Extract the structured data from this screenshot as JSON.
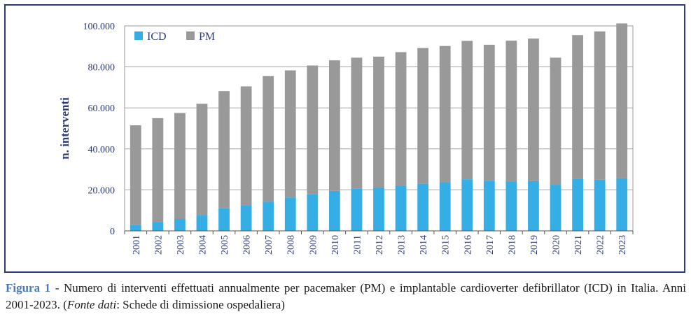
{
  "chart_data": {
    "type": "bar",
    "stacked": true,
    "categories": [
      "2001",
      "2002",
      "2003",
      "2004",
      "2005",
      "2006",
      "2007",
      "2008",
      "2009",
      "2010",
      "2011",
      "2012",
      "2013",
      "2014",
      "2015",
      "2016",
      "2017",
      "2018",
      "2019",
      "2020",
      "2021",
      "2022",
      "2023"
    ],
    "series": [
      {
        "name": "ICD",
        "color": "#35aee6",
        "values": [
          3000,
          4300,
          5800,
          7500,
          11000,
          12300,
          14200,
          16300,
          17800,
          19500,
          20700,
          21000,
          22000,
          23000,
          23700,
          25200,
          24500,
          24200,
          24300,
          22500,
          25500,
          25000,
          25700
        ]
      },
      {
        "name": "PM",
        "color": "#999999",
        "values": [
          48500,
          50700,
          51700,
          54500,
          57200,
          58200,
          61300,
          62000,
          62900,
          63700,
          63800,
          64000,
          65200,
          66200,
          66500,
          67500,
          66300,
          68600,
          69500,
          62000,
          70000,
          72300,
          75500
        ]
      }
    ],
    "ylabel": "n. interventi",
    "ylim": [
      0,
      100000
    ],
    "yticks": [
      0,
      20000,
      40000,
      60000,
      80000,
      100000
    ],
    "ytick_labels": [
      "0",
      "20.000",
      "40.000",
      "60.000",
      "80.000",
      "100.000"
    ],
    "grid": true,
    "legend_position": "top-left"
  },
  "caption": {
    "label": "Figura 1",
    "text_before": " - Numero di interventi effettuati annualmente per pacemaker (PM) e implantable cardioverter defibrillator (ICD) in Italia. Anni 2001-2023. (",
    "source_italic": "Fonte dati",
    "text_after": ": Schede di dimissione ospedaliera)"
  }
}
